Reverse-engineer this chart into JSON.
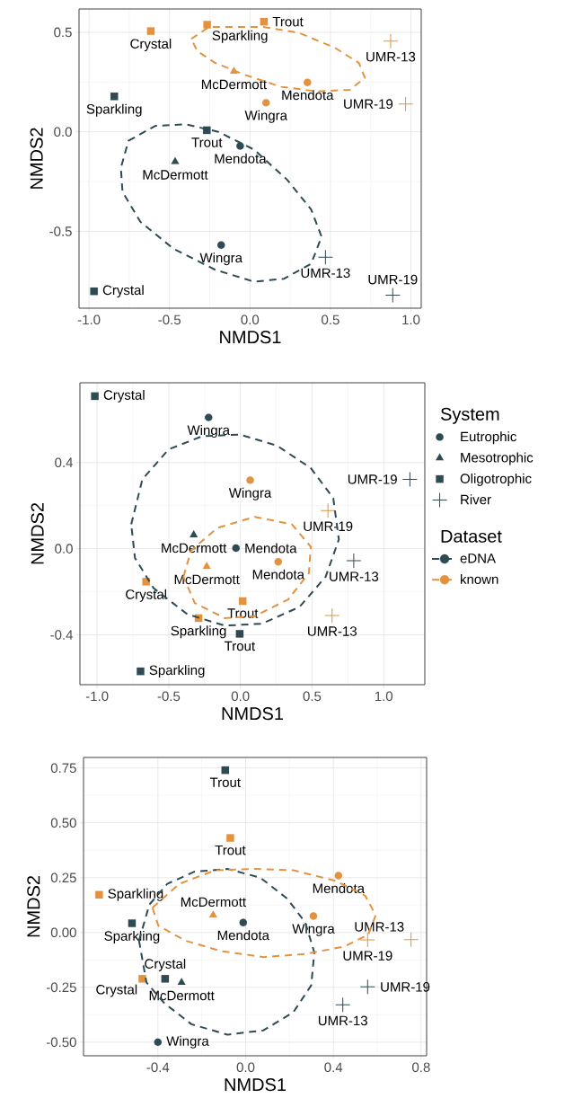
{
  "chart_data": [
    {
      "type": "scatter",
      "xlabel": "NMDS1",
      "ylabel": "NMDS2",
      "xlim": [
        -1.062,
        1.064
      ],
      "ylim": [
        -0.886,
        0.617
      ],
      "grid": true,
      "xticks": [
        {
          "value": -1.0,
          "label": "-1.0"
        },
        {
          "value": -0.5,
          "label": "-0.5"
        },
        {
          "value": 0,
          "label": "0.0"
        },
        {
          "value": 0.5,
          "label": "0.5"
        },
        {
          "value": 1.0,
          "label": "1.0"
        }
      ],
      "yticks": [
        {
          "value": -0.5,
          "label": "-0.5"
        },
        {
          "value": 0,
          "label": "0.0"
        },
        {
          "value": 0.5,
          "label": "0.5"
        }
      ],
      "series": [
        {
          "type": "scatter",
          "color": "#2e4a53",
          "marker": "circle",
          "x": [
            -0.061,
            -0.179
          ],
          "values": [
            -0.071,
            -0.569
          ],
          "value_labels": [
            "Mendota",
            "Wingra"
          ]
        },
        {
          "type": "scatter",
          "color": "#2e4a53",
          "marker": "triangle",
          "x": [
            -0.465
          ],
          "values": [
            -0.15
          ],
          "value_labels": [
            "McDermott"
          ]
        },
        {
          "type": "scatter",
          "color": "#2e4a53",
          "marker": "square",
          "x": [
            -0.969,
            -0.843,
            -0.268
          ],
          "values": [
            -0.801,
            0.178,
            0.008
          ],
          "value_labels": [
            "Crystal",
            "Sparkling",
            "Trout"
          ]
        },
        {
          "type": "scatter",
          "color": "#2e4a53",
          "marker": "cross",
          "x": [
            0.469,
            0.887
          ],
          "values": [
            -0.63,
            -0.821
          ],
          "value_labels": [
            "UMR-13",
            "UMR-19"
          ]
        },
        {
          "type": "scatter",
          "color": "#e3923f",
          "marker": "circle",
          "x": [
            0.357,
            0.1
          ],
          "values": [
            0.248,
            0.146
          ],
          "value_labels": [
            "Mendota",
            "Wingra"
          ]
        },
        {
          "type": "scatter",
          "color": "#e3923f",
          "marker": "triangle",
          "x": [
            -0.1
          ],
          "values": [
            0.304
          ],
          "value_labels": [
            "McDermott"
          ]
        },
        {
          "type": "scatter",
          "color": "#e3923f",
          "marker": "square",
          "x": [
            -0.616,
            -0.266,
            0.087
          ],
          "values": [
            0.506,
            0.538,
            0.553
          ],
          "value_labels": [
            "Crystal",
            "Sparkling",
            "Trout"
          ]
        },
        {
          "type": "scatter",
          "color": "#e3923f",
          "marker": "cross",
          "x": [
            0.874,
            0.967
          ],
          "values": [
            0.456,
            0.14
          ],
          "value_labels": [
            "UMR-13",
            "UMR-19"
          ]
        }
      ]
    },
    {
      "type": "scatter",
      "xlabel": "NMDS1",
      "ylabel": "NMDS2",
      "xlim": [
        -1.12,
        1.287
      ],
      "ylim": [
        -0.631,
        0.77
      ],
      "grid": true,
      "legend": "right",
      "legend_title": "System",
      "annotations": [
        "Dataset",
        "eDNA",
        "known"
      ],
      "xticks": [
        {
          "value": -1.0,
          "label": "-1.0"
        },
        {
          "value": -0.5,
          "label": "-0.5"
        },
        {
          "value": 0,
          "label": "0.0"
        },
        {
          "value": 0.5,
          "label": "0.5"
        },
        {
          "value": 1.0,
          "label": "1.0"
        }
      ],
      "yticks": [
        {
          "value": -0.4,
          "label": "-0.4"
        },
        {
          "value": 0,
          "label": "0.0"
        },
        {
          "value": 0.4,
          "label": "0.4"
        }
      ],
      "series": [
        {
          "type": "scatter",
          "name": "Eutrophic",
          "color": "#2e4a53",
          "marker": "circle",
          "x": [
            -0.031,
            -0.222
          ],
          "values": [
            0.003,
            0.609
          ],
          "value_labels": [
            "Mendota",
            "Wingra"
          ]
        },
        {
          "type": "scatter",
          "name": "Mesotrophic",
          "color": "#2e4a53",
          "marker": "triangle",
          "x": [
            -0.326
          ],
          "values": [
            0.064
          ],
          "value_labels": [
            "McDermott"
          ]
        },
        {
          "type": "scatter",
          "name": "Oligotrophic",
          "color": "#2e4a53",
          "marker": "square",
          "x": [
            -1.016,
            -0.697,
            -0.005
          ],
          "values": [
            0.708,
            -0.569,
            -0.395
          ],
          "value_labels": [
            "Crystal",
            "Sparkling",
            "Trout"
          ]
        },
        {
          "type": "scatter",
          "name": "River",
          "color": "#2e4a53",
          "marker": "cross",
          "x": [
            0.791,
            1.183
          ],
          "values": [
            -0.056,
            0.322
          ],
          "value_labels": [
            "UMR-13",
            "UMR-19"
          ]
        },
        {
          "type": "scatter",
          "color": "#e3923f",
          "marker": "circle",
          "x": [
            0.264,
            0.068
          ],
          "values": [
            -0.061,
            0.318
          ],
          "value_labels": [
            "Mendota",
            "Wingra"
          ]
        },
        {
          "type": "scatter",
          "color": "#e3923f",
          "marker": "triangle",
          "x": [
            -0.235
          ],
          "values": [
            -0.082
          ],
          "value_labels": [
            "McDermott"
          ]
        },
        {
          "type": "scatter",
          "color": "#e3923f",
          "marker": "square",
          "x": [
            -0.658,
            -0.292,
            0.016
          ],
          "values": [
            -0.153,
            -0.322,
            -0.243
          ],
          "value_labels": [
            "Crystal",
            "Sparkling",
            "Trout"
          ]
        },
        {
          "type": "scatter",
          "color": "#e3923f",
          "marker": "cross",
          "x": [
            0.64,
            0.611
          ],
          "values": [
            -0.31,
            0.177
          ],
          "value_labels": [
            "UMR-13",
            "UMR-19"
          ]
        }
      ]
    },
    {
      "type": "scatter",
      "xlabel": "NMDS1",
      "ylabel": "NMDS2",
      "xlim": [
        -0.739,
        0.825
      ],
      "ylim": [
        -0.562,
        0.798
      ],
      "grid": true,
      "xticks": [
        {
          "value": -0.4,
          "label": "-0.4"
        },
        {
          "value": 0,
          "label": "0.0"
        },
        {
          "value": 0.4,
          "label": "0.4"
        },
        {
          "value": 0.8,
          "label": "0.8"
        }
      ],
      "yticks": [
        {
          "value": -0.5,
          "label": "-0.50"
        },
        {
          "value": -0.25,
          "label": "-0.25"
        },
        {
          "value": 0,
          "label": "0.00"
        },
        {
          "value": 0.25,
          "label": "0.25"
        },
        {
          "value": 0.5,
          "label": "0.50"
        },
        {
          "value": 0.75,
          "label": "0.75"
        }
      ],
      "series": [
        {
          "type": "scatter",
          "color": "#2e4a53",
          "marker": "circle",
          "x": [
            -0.011,
            -0.4
          ],
          "values": [
            0.045,
            -0.5
          ],
          "value_labels": [
            "Mendota",
            "Wingra"
          ]
        },
        {
          "type": "scatter",
          "color": "#2e4a53",
          "marker": "triangle",
          "x": [
            -0.292
          ],
          "values": [
            -0.228
          ],
          "value_labels": [
            "McDermott"
          ]
        },
        {
          "type": "scatter",
          "color": "#2e4a53",
          "marker": "square",
          "x": [
            -0.367,
            -0.518,
            -0.093
          ],
          "values": [
            -0.211,
            0.042,
            0.74
          ],
          "value_labels": [
            "Crystal",
            "Sparkling",
            "Trout"
          ]
        },
        {
          "type": "scatter",
          "color": "#2e4a53",
          "marker": "cross",
          "x": [
            0.443,
            0.556
          ],
          "values": [
            -0.33,
            -0.248
          ],
          "value_labels": [
            "UMR-13",
            "UMR-19"
          ]
        },
        {
          "type": "scatter",
          "color": "#e3923f",
          "marker": "circle",
          "x": [
            0.423,
            0.309
          ],
          "values": [
            0.259,
            0.075
          ],
          "value_labels": [
            "Mendota",
            "Wingra"
          ]
        },
        {
          "type": "scatter",
          "color": "#e3923f",
          "marker": "triangle",
          "x": [
            -0.148
          ],
          "values": [
            0.079
          ],
          "value_labels": [
            "McDermott"
          ]
        },
        {
          "type": "scatter",
          "color": "#e3923f",
          "marker": "square",
          "x": [
            -0.471,
            -0.668,
            -0.07
          ],
          "values": [
            -0.211,
            0.172,
            0.431
          ],
          "value_labels": [
            "Crystal",
            "Sparkling",
            "Trout"
          ]
        },
        {
          "type": "scatter",
          "color": "#e3923f",
          "marker": "cross",
          "x": [
            0.754,
            0.556
          ],
          "values": [
            -0.033,
            -0.034
          ],
          "value_labels": [
            "UMR-13",
            "UMR-19"
          ]
        }
      ]
    }
  ]
}
